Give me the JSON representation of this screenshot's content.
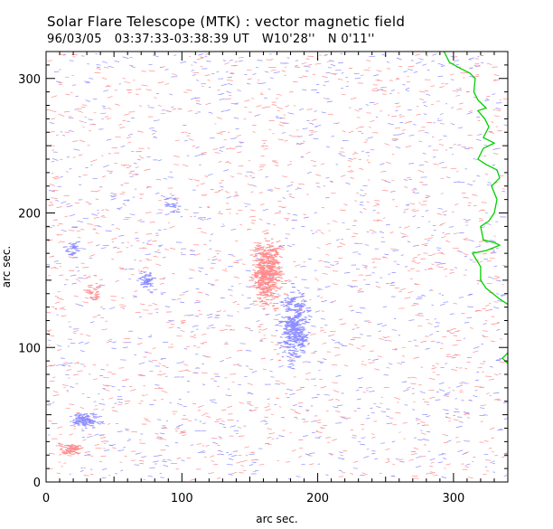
{
  "header": {
    "title": "Solar Flare Telescope (MTK) : vector magnetic field",
    "date": "96/03/05",
    "time_range": "03:37:33-03:38:39 UT",
    "lon": "W10'28''",
    "lat": "N 0'11''"
  },
  "chart_data": {
    "type": "vector-magnetogram",
    "xlabel": "arc sec.",
    "ylabel": "arc sec.",
    "xlim": [
      0,
      340
    ],
    "ylim": [
      0,
      320
    ],
    "xticks": [
      0,
      100,
      200,
      300
    ],
    "yticks": [
      0,
      100,
      200,
      300
    ],
    "colors": {
      "positive": "#ff8c8c",
      "negative": "#8c8cff",
      "limb": "#00d000",
      "axis": "#000000"
    },
    "positive_regions": [
      {
        "name": "main positive spot",
        "x": 163,
        "y": 155,
        "rx": 9,
        "ry": 20,
        "density": 420
      },
      {
        "name": "small positive patch",
        "x": 18,
        "y": 24,
        "rx": 8,
        "ry": 4,
        "density": 60
      },
      {
        "name": "small positive patch 2",
        "x": 36,
        "y": 140,
        "rx": 6,
        "ry": 5,
        "density": 25
      }
    ],
    "negative_regions": [
      {
        "name": "main negative spot",
        "x": 183,
        "y": 115,
        "rx": 9,
        "ry": 22,
        "density": 320
      },
      {
        "name": "southwest negative spot",
        "x": 29,
        "y": 46,
        "rx": 7,
        "ry": 4,
        "density": 90
      },
      {
        "name": "negative patch",
        "x": 75,
        "y": 149,
        "rx": 5,
        "ry": 6,
        "density": 40
      },
      {
        "name": "negative patch 2",
        "x": 20,
        "y": 173,
        "rx": 5,
        "ry": 6,
        "density": 25
      },
      {
        "name": "negative patch 3",
        "x": 93,
        "y": 205,
        "rx": 6,
        "ry": 6,
        "density": 20
      }
    ],
    "limb": [
      [
        293,
        320
      ],
      [
        297,
        312
      ],
      [
        304,
        308
      ],
      [
        312,
        304
      ],
      [
        316,
        300
      ],
      [
        315,
        290
      ],
      [
        318,
        284
      ],
      [
        324,
        278
      ],
      [
        318,
        276
      ],
      [
        323,
        270
      ],
      [
        326,
        264
      ],
      [
        322,
        256
      ],
      [
        330,
        252
      ],
      [
        322,
        248
      ],
      [
        318,
        240
      ],
      [
        324,
        236
      ],
      [
        332,
        232
      ],
      [
        334,
        226
      ],
      [
        328,
        220
      ],
      [
        332,
        210
      ],
      [
        330,
        200
      ],
      [
        326,
        194
      ],
      [
        320,
        190
      ],
      [
        322,
        180
      ],
      [
        330,
        178
      ],
      [
        334,
        176
      ],
      [
        324,
        172
      ],
      [
        314,
        170
      ],
      [
        320,
        160
      ],
      [
        320,
        150
      ],
      [
        324,
        144
      ],
      [
        334,
        136
      ],
      [
        340,
        132
      ]
    ],
    "limb_tail": [
      [
        340,
        96
      ],
      [
        336,
        92
      ],
      [
        340,
        88
      ]
    ]
  }
}
